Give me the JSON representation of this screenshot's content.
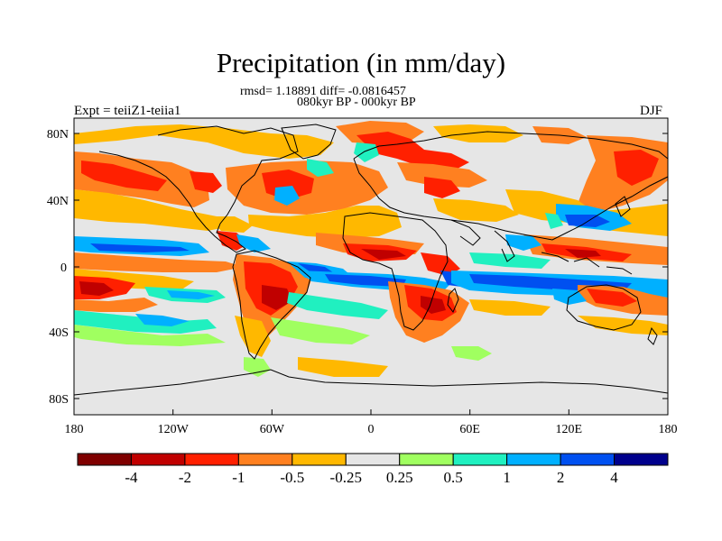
{
  "title": "Precipitation (in mm/day)",
  "stats": "rmsd= 1.18891 diff= -0.0816457",
  "period": "080kyr BP - 000kyr BP",
  "experiment": "Expt = teiiZ1-teiia1",
  "season": "DJF",
  "map": {
    "background_color": "#e6e6e6",
    "lat_ticks": [
      "80N",
      "40N",
      "0",
      "40S",
      "80S"
    ],
    "lon_ticks": [
      "180",
      "120W",
      "60W",
      "0",
      "60E",
      "120E",
      "180"
    ]
  },
  "colorbar": {
    "colors": [
      "#7f0000",
      "#c00000",
      "#ff2000",
      "#ff8020",
      "#ffb800",
      "#e6e6e6",
      "#a0ff60",
      "#20f0c0",
      "#00b0ff",
      "#0050f0",
      "#00008c"
    ],
    "labels": [
      "-4",
      "-2",
      "-1",
      "-0.5",
      "-0.25",
      "0.25",
      "0.5",
      "1",
      "2",
      "4"
    ]
  }
}
